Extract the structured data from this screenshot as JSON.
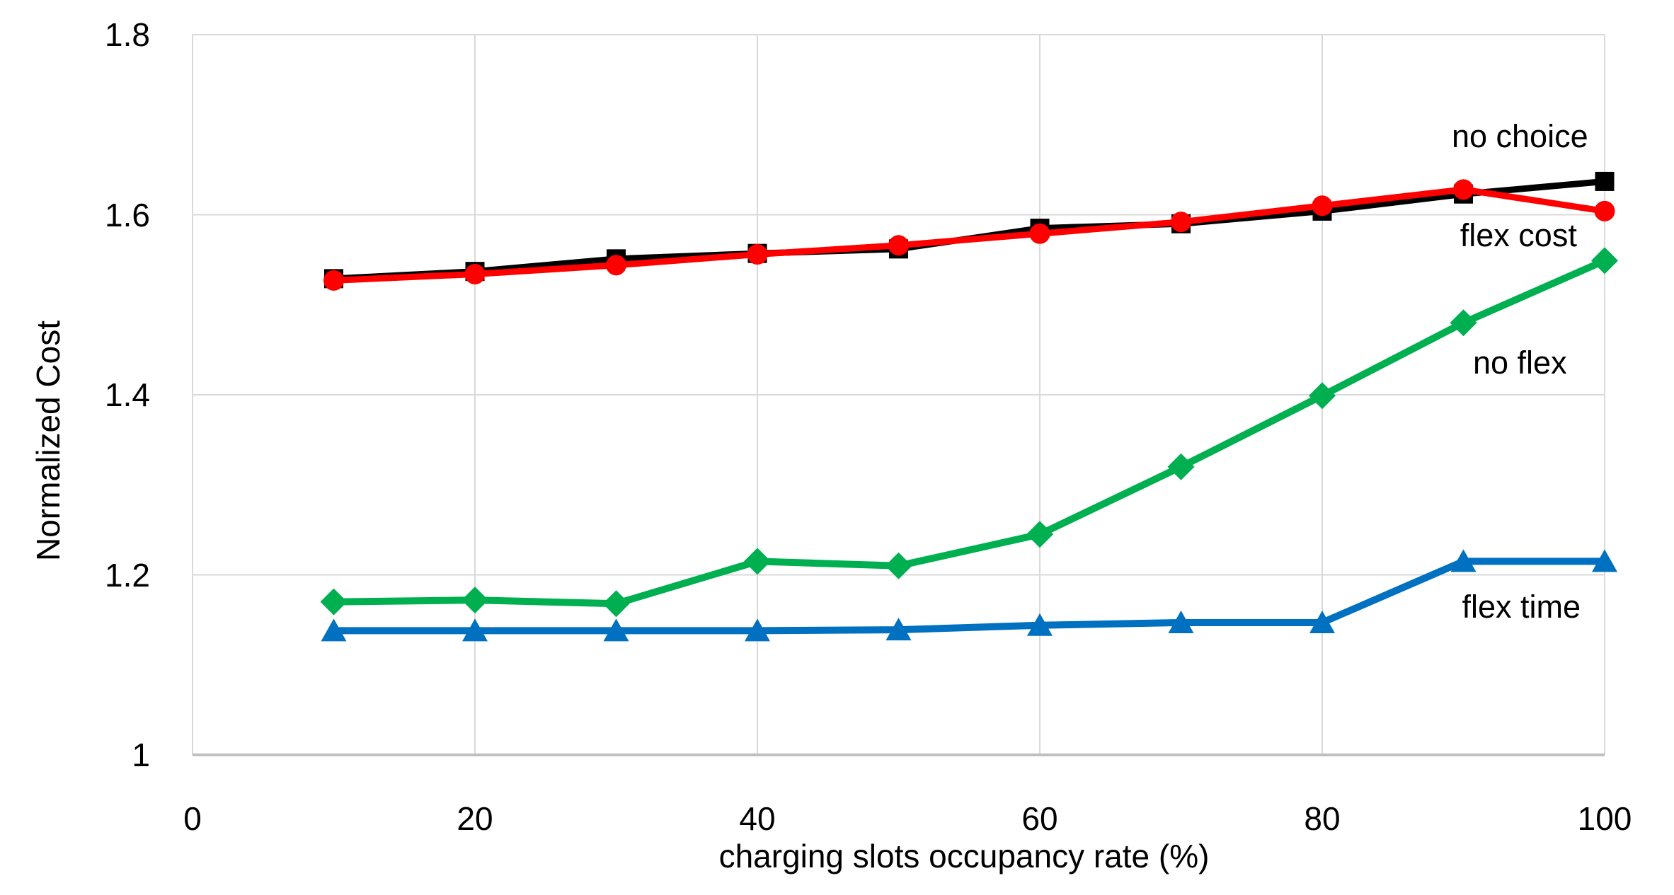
{
  "chart_data": {
    "type": "line",
    "title": "",
    "xlabel": "charging slots occupancy rate (%)",
    "ylabel": "Normalized Cost",
    "x": [
      10,
      20,
      30,
      40,
      50,
      60,
      70,
      80,
      90,
      100
    ],
    "xlim": [
      0,
      100
    ],
    "ylim": [
      1.0,
      1.8
    ],
    "xticks": [
      0,
      20,
      40,
      60,
      80,
      100
    ],
    "xtick_labels": [
      "0",
      "20",
      "40",
      "60",
      "80",
      "100"
    ],
    "yticks": [
      1.0,
      1.2,
      1.4,
      1.6,
      1.8
    ],
    "ytick_labels": [
      "1",
      "1.2",
      "1.4",
      "1.6",
      "1.8"
    ],
    "grid": true,
    "legend_position": "right-inline-annotations",
    "series": [
      {
        "name": "no choice",
        "color": "#000000",
        "marker": "square",
        "values": [
          1.529,
          1.537,
          1.551,
          1.557,
          1.562,
          1.585,
          1.59,
          1.604,
          1.623,
          1.637
        ]
      },
      {
        "name": "flex cost",
        "color": "#FF0000",
        "marker": "circle",
        "values": [
          1.527,
          1.534,
          1.544,
          1.556,
          1.566,
          1.579,
          1.592,
          1.61,
          1.628,
          1.604
        ]
      },
      {
        "name": "no flex",
        "color": "#00B050",
        "marker": "diamond",
        "values": [
          1.17,
          1.172,
          1.168,
          1.215,
          1.21,
          1.245,
          1.32,
          1.399,
          1.48,
          1.549
        ]
      },
      {
        "name": "flex time",
        "color": "#0070C0",
        "marker": "triangle",
        "values": [
          1.138,
          1.138,
          1.138,
          1.138,
          1.139,
          1.144,
          1.147,
          1.147,
          1.215,
          1.215
        ]
      }
    ],
    "annotations": [
      {
        "text": "no choice",
        "x": 94.0,
        "y": 1.687
      },
      {
        "text": "flex cost",
        "x": 93.9,
        "y": 1.577
      },
      {
        "text": "no flex",
        "x": 94.0,
        "y": 1.435
      },
      {
        "text": "flex time",
        "x": 94.1,
        "y": 1.164
      }
    ],
    "colors": {
      "gridline": "#D9D9D9",
      "axis_line": "#BFBFBF",
      "text": "#000000",
      "background": "#FFFFFF"
    }
  }
}
